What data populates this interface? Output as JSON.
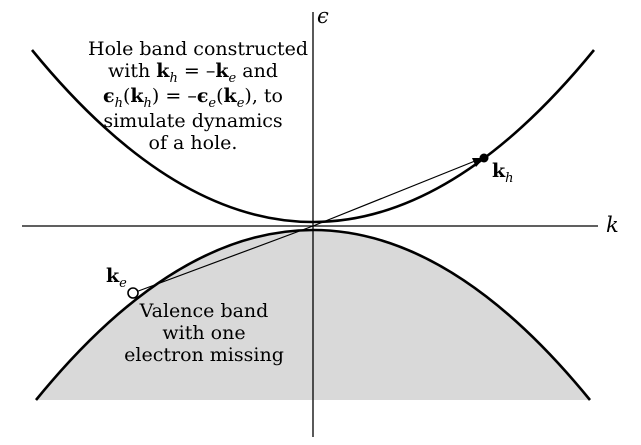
{
  "axes": {
    "x_label": "k",
    "y_label": "ϵ"
  },
  "hole_caption": {
    "line1": "Hole band constructed",
    "line2_prefix": "with ",
    "line2_k": "k",
    "line2_h": "h",
    "line2_eq": " = –",
    "line2_k2": "k",
    "line2_e": "e",
    "line2_suffix": " and",
    "line3_eps": "ϵ",
    "line3_h": "h",
    "line3_open": "(",
    "line3_k": "k",
    "line3_kh": "h",
    "line3_mid": ") = –",
    "line3_eps2": "ϵ",
    "line3_e": "e",
    "line3_open2": "(",
    "line3_k2": "k",
    "line3_ke": "e",
    "line3_close": "), to",
    "line4": "simulate dynamics",
    "line5": "of a hole."
  },
  "valence_caption": {
    "line1": "Valence band",
    "line2": "with one",
    "line3": "electron missing"
  },
  "points": {
    "kh_label": "k",
    "kh_sub": "h",
    "ke_label": "k",
    "ke_sub": "e"
  },
  "colors": {
    "band_fill": "#d9d9d9",
    "line": "#000000"
  }
}
